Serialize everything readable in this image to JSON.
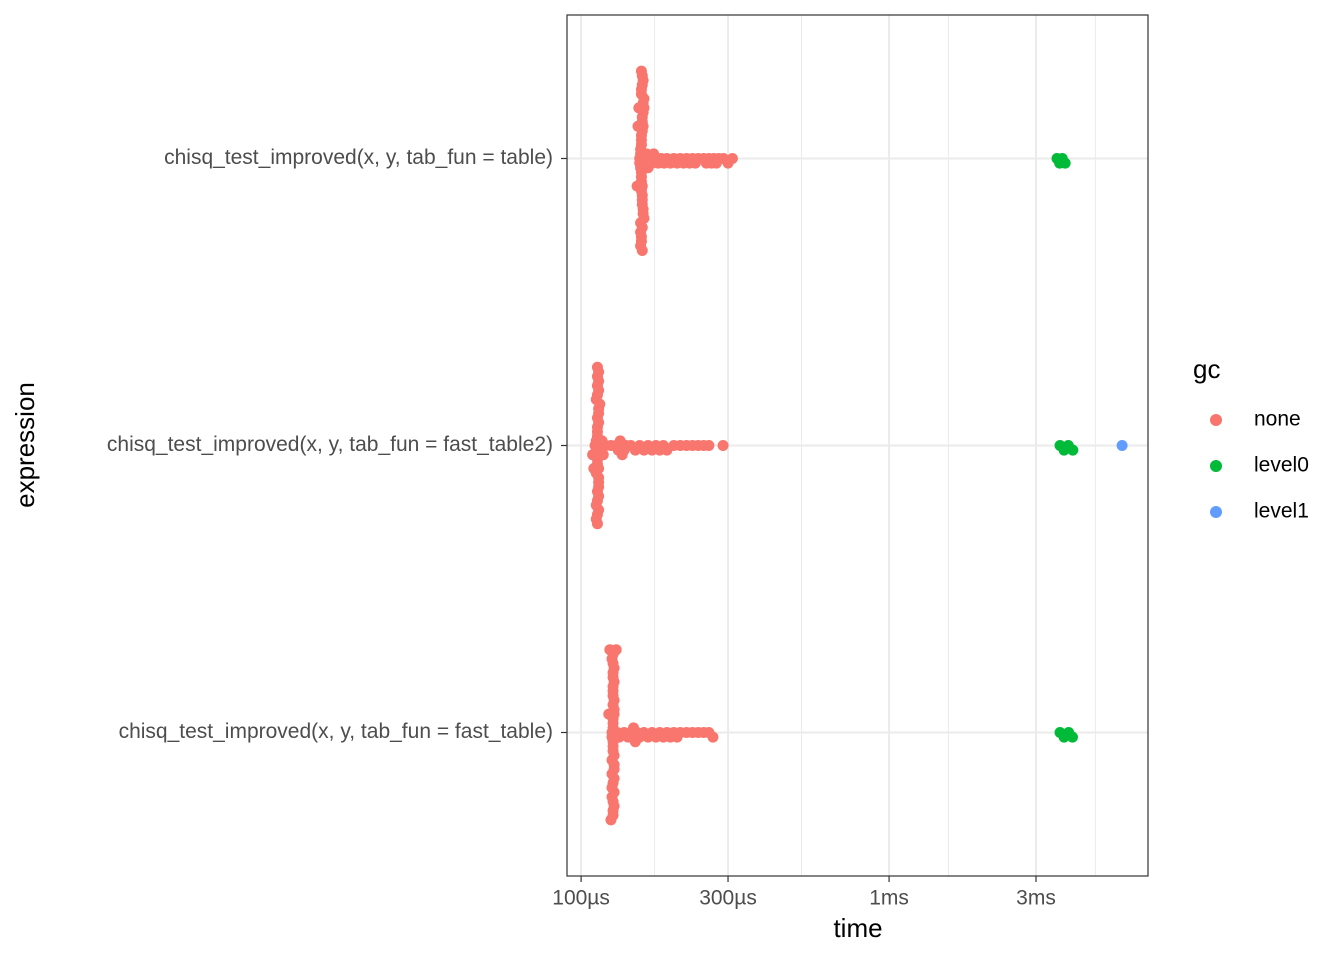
{
  "chart_data": {
    "type": "beeswarm",
    "x_label": "time",
    "y_label": "expression",
    "legend_title": "gc",
    "log_x": true,
    "grid": true,
    "categories": [
      "chisq_test_improved(x, y, tab_fun = table)",
      "chisq_test_improved(x, y, tab_fun = fast_table2)",
      "chisq_test_improved(x, y, tab_fun = fast_table)"
    ],
    "xlim": [
      90,
      6930
    ],
    "xticks": [
      {
        "value": 100,
        "label": "100µs"
      },
      {
        "value": 300,
        "label": "300µs"
      },
      {
        "value": 1000,
        "label": "1ms"
      },
      {
        "value": 3000,
        "label": "3ms"
      }
    ],
    "series": [
      {
        "name": "none",
        "color": "#F8766D",
        "values": [
          [
            155,
            155,
            156,
            156,
            156,
            157,
            157,
            157,
            157,
            157,
            157,
            157,
            158,
            158,
            158,
            158,
            158,
            158,
            158,
            159,
            159,
            159,
            159,
            159,
            160,
            160,
            160,
            156,
            157,
            158,
            157,
            156,
            158,
            157,
            159,
            157,
            158,
            156,
            157,
            158,
            152,
            153,
            154,
            161,
            162,
            163,
            165,
            168,
            170,
            172,
            175,
            178,
            182,
            186,
            190,
            195,
            200,
            205,
            210,
            215,
            220,
            225,
            230,
            235,
            240,
            250,
            255,
            260,
            265,
            270,
            275,
            280,
            290,
            300,
            310
          ],
          [
            111,
            112,
            112,
            113,
            113,
            113,
            113,
            113,
            113,
            114,
            114,
            114,
            114,
            114,
            114,
            112,
            113,
            114,
            115,
            115,
            113,
            112,
            113,
            114,
            113,
            114,
            112,
            113,
            114,
            113,
            114,
            113,
            112,
            113,
            114,
            113,
            109,
            110,
            116,
            117,
            118,
            120,
            125,
            130,
            132,
            134,
            135,
            136,
            138,
            140,
            145,
            150,
            155,
            160,
            165,
            170,
            175,
            180,
            185,
            190,
            200,
            210,
            220,
            230,
            240,
            250,
            260,
            289
          ],
          [
            126,
            126,
            127,
            127,
            127,
            127,
            127,
            127,
            128,
            128,
            128,
            128,
            128,
            126,
            127,
            128,
            127,
            126,
            127,
            128,
            127,
            127,
            128,
            126,
            127,
            128,
            127,
            126,
            127,
            128,
            127,
            127,
            128,
            127,
            126,
            127,
            123,
            124,
            125,
            130,
            131,
            133,
            138,
            142,
            145,
            147,
            148,
            150,
            152,
            155,
            160,
            165,
            170,
            175,
            180,
            185,
            190,
            195,
            200,
            205,
            210,
            220,
            230,
            240,
            250,
            260,
            268
          ]
        ]
      },
      {
        "name": "level0",
        "color": "#00BA38",
        "values": [
          [
            3510,
            3580,
            3650,
            3730
          ],
          [
            3590,
            3700,
            3820,
            3950
          ],
          [
            3590,
            3700,
            3830,
            3940
          ]
        ]
      },
      {
        "name": "level1",
        "color": "#619CFF",
        "values": [
          [],
          [
            5710
          ],
          []
        ]
      }
    ]
  }
}
